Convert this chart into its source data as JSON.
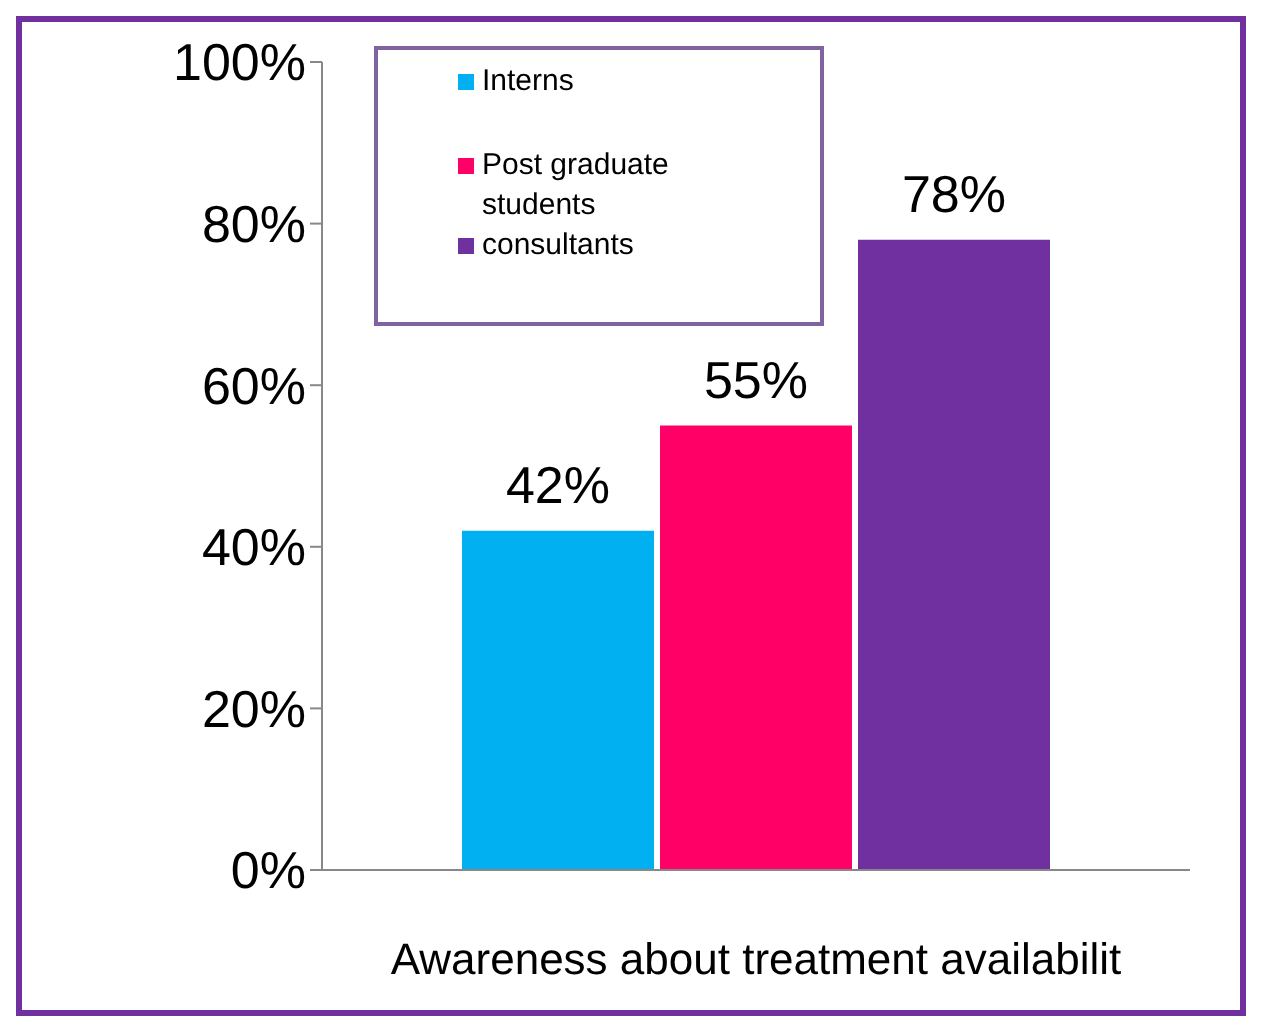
{
  "chart_data": {
    "type": "bar",
    "categories": [
      null
    ],
    "xlabel": "Awareness about treatment availabilit",
    "series": [
      {
        "name": "Interns",
        "color": "#00b0f0",
        "values": [
          42
        ],
        "value_labels": [
          "42%"
        ]
      },
      {
        "name": "Post graduate students",
        "color": "#ff0066",
        "values": [
          55
        ],
        "value_labels": [
          "55%"
        ]
      },
      {
        "name": "consultants",
        "color": "#7030a0",
        "values": [
          78
        ],
        "value_labels": [
          "78%"
        ]
      }
    ],
    "ylim": [
      0,
      100
    ],
    "yticks": [
      {
        "value": 0,
        "label": "0%"
      },
      {
        "value": 20,
        "label": "20%"
      },
      {
        "value": 40,
        "label": "40%"
      },
      {
        "value": 60,
        "label": "60%"
      },
      {
        "value": 80,
        "label": "80%"
      },
      {
        "value": 100,
        "label": "100%"
      }
    ],
    "grid": false,
    "legend": "top left"
  }
}
